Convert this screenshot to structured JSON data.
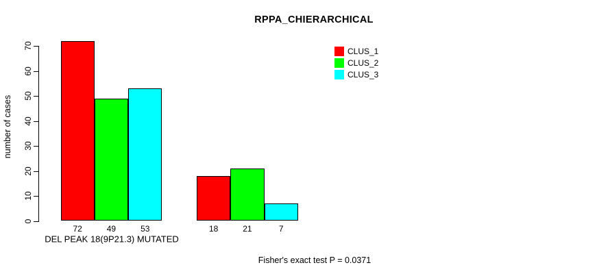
{
  "chart_data": {
    "type": "bar",
    "title": "RPPA_CHIERARCHICAL",
    "ylabel": "number of cases",
    "xlabel": "",
    "annotation": "Fisher's exact test P = 0.0371",
    "categories": [
      "DEL PEAK 18(9P21.3) MUTATED",
      ""
    ],
    "series": [
      {
        "name": "CLUS_1",
        "color": "#FF0000",
        "values": [
          72,
          18
        ]
      },
      {
        "name": "CLUS_2",
        "color": "#00FF00",
        "values": [
          49,
          21
        ]
      },
      {
        "name": "CLUS_3",
        "color": "#00FFFF",
        "values": [
          53,
          7
        ]
      }
    ],
    "bar_value_labels": [
      [
        72,
        49,
        53
      ],
      [
        18,
        21,
        7
      ]
    ],
    "ylim": [
      0,
      70
    ],
    "yticks": [
      0,
      10,
      20,
      30,
      40,
      50,
      60,
      70
    ],
    "grid": false,
    "legend_position": "top-right",
    "background_color": "#FFFFFF",
    "axis_color": "#000000"
  }
}
